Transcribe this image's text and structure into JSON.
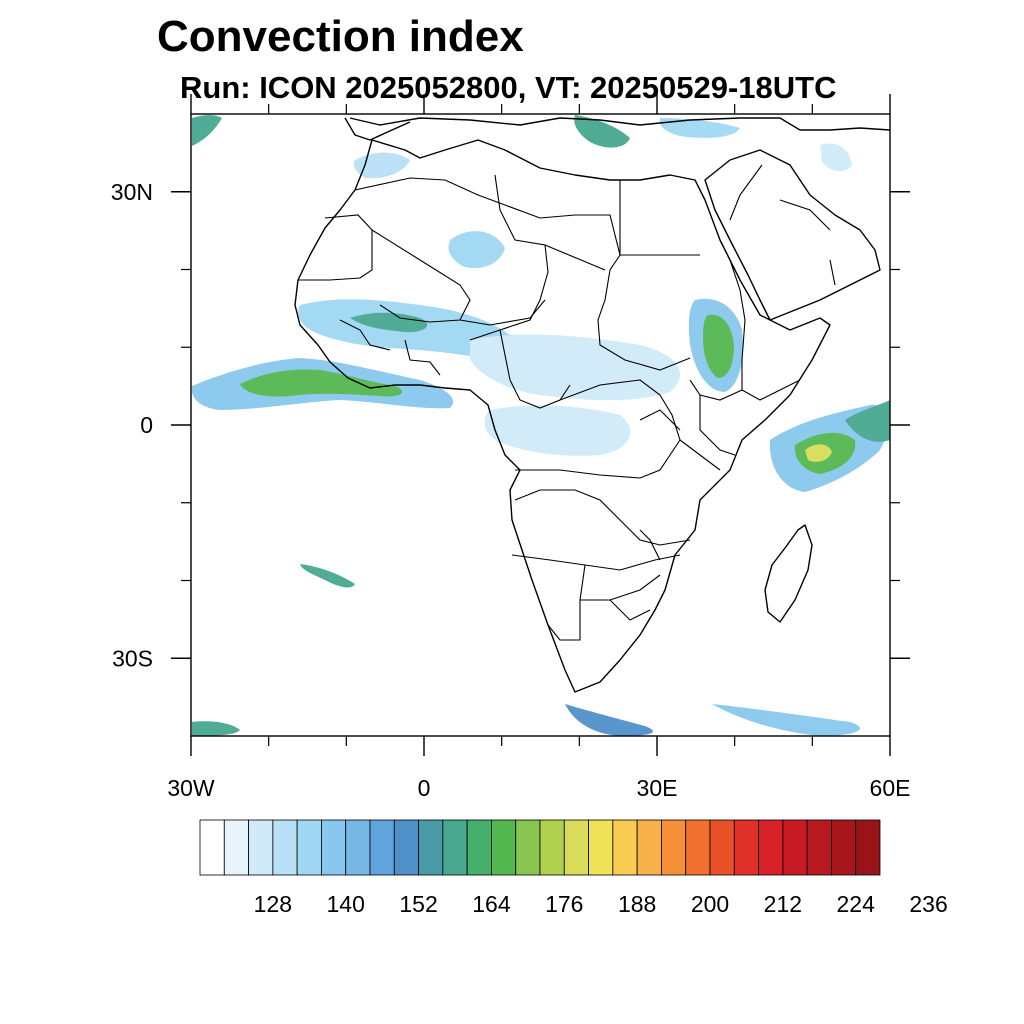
{
  "title": "Convection index",
  "subtitle": "Run: ICON 2025052800,  VT: 20250529-18UTC",
  "map": {
    "lon_range": [
      -30,
      60
    ],
    "lat_range": [
      -40,
      40
    ],
    "lon_ticks": [
      {
        "value": -30,
        "label": "30W"
      },
      {
        "value": 0,
        "label": "0"
      },
      {
        "value": 30,
        "label": "30E"
      },
      {
        "value": 60,
        "label": "60E"
      }
    ],
    "lat_ticks": [
      {
        "value": 30,
        "label": "30N"
      },
      {
        "value": 0,
        "label": "0"
      },
      {
        "value": -30,
        "label": "30S"
      }
    ],
    "minor_lon_ticks": [
      -20,
      -10,
      10,
      20,
      40,
      50
    ],
    "minor_lat_ticks": [
      20,
      10,
      -10,
      -20
    ]
  },
  "colorbar": {
    "colors": [
      "#ffffff",
      "#e8f4fc",
      "#d0eaf8",
      "#b8e0f6",
      "#a0d8f4",
      "#88c8ee",
      "#78b8e6",
      "#60a4dc",
      "#5090c8",
      "#4a9aa8",
      "#48a890",
      "#44b06c",
      "#54b850",
      "#88c450",
      "#b0d050",
      "#d8dc58",
      "#f0e258",
      "#f8cc50",
      "#f8b048",
      "#f59038",
      "#f07030",
      "#e85028",
      "#e03028",
      "#d82028",
      "#c81a24",
      "#b81820",
      "#a8161c",
      "#981418"
    ],
    "labels": [
      "128",
      "140",
      "152",
      "164",
      "176",
      "188",
      "200",
      "212",
      "224",
      "236"
    ]
  }
}
